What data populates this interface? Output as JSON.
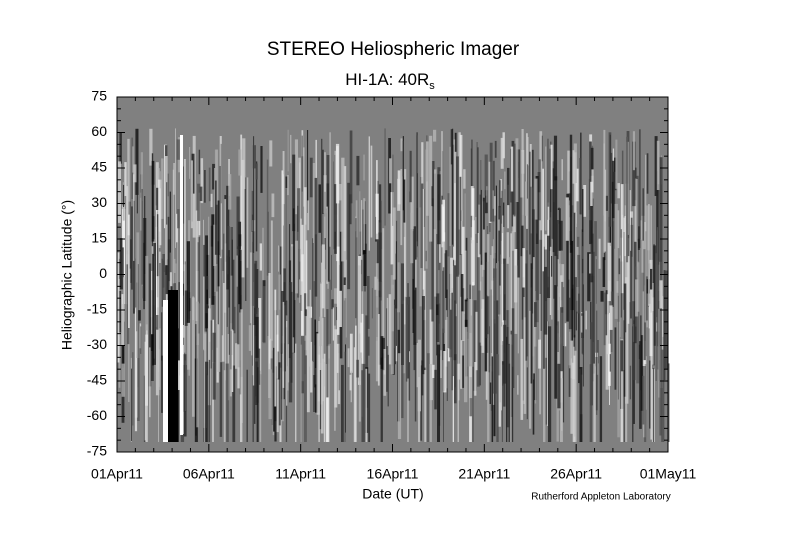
{
  "chart_data": {
    "type": "image",
    "title": "STEREO Heliospheric Imager",
    "subtitle": "HI-1A: 40R",
    "subtitle_subscript": "s",
    "y_label": "Heliographic Latitude (°)",
    "x_label": "Date (UT)",
    "credit": "Rutherford Appleton Laboratory",
    "ylim": [
      -75,
      75
    ],
    "yticks": [
      -75,
      -60,
      -45,
      -30,
      -15,
      0,
      15,
      30,
      45,
      60,
      75
    ],
    "xticks": [
      "01Apr11",
      "06Apr11",
      "11Apr11",
      "16Apr11",
      "21Apr11",
      "26Apr11",
      "01May11"
    ]
  }
}
